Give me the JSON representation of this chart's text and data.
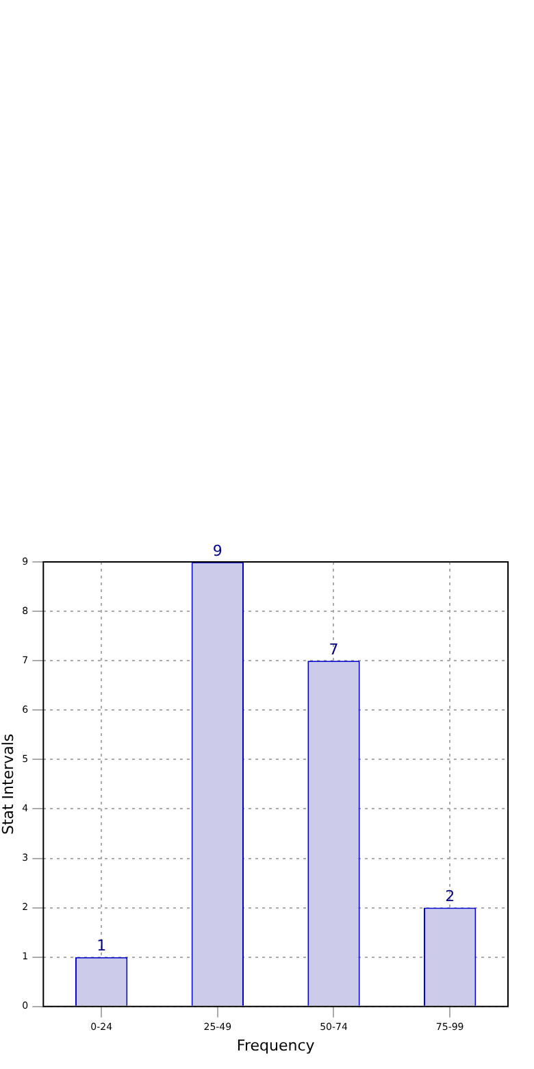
{
  "chart_data": {
    "type": "bar",
    "xlabel": "Frequency",
    "ylabel": "Stat Intervals",
    "categories": [
      "0-24",
      "25-49",
      "50-74",
      "75-99"
    ],
    "values": [
      1,
      9,
      7,
      2
    ],
    "color": "#ccccea",
    "ylim": [
      0,
      9
    ],
    "yticks": [
      0,
      1,
      2,
      3,
      4,
      5,
      6,
      7,
      8,
      9
    ],
    "grid": true,
    "legend": false,
    "data_labels": true
  }
}
